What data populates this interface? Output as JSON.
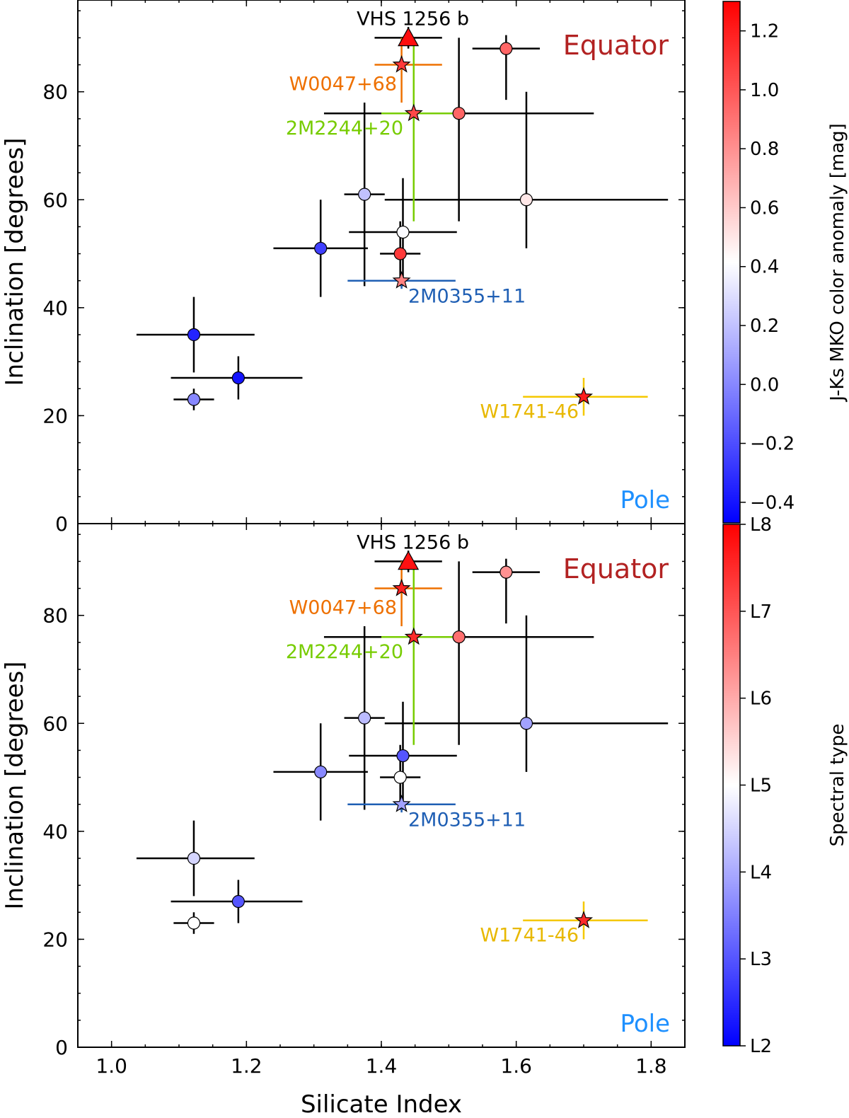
{
  "chart_data": [
    {
      "type": "scatter",
      "panel": "top",
      "xlabel": "",
      "ylabel": "Inclination [degrees]",
      "xlim": [
        0.95,
        1.85
      ],
      "ylim": [
        0,
        97
      ],
      "xticks": [
        "1.0",
        "1.2",
        "1.4",
        "1.6",
        "1.8"
      ],
      "yticks": [
        "0",
        "20",
        "40",
        "60",
        "80"
      ],
      "colorbar": {
        "label": "J-Ks MKO color anomaly [mag]",
        "range": [
          -0.47,
          1.3
        ],
        "ticks": [
          "−0.4",
          "−0.2",
          "0.0",
          "0.2",
          "0.4",
          "0.6",
          "0.8",
          "1.0",
          "1.2"
        ],
        "tick_values": [
          -0.4,
          -0.2,
          0.0,
          0.2,
          0.4,
          0.6,
          0.8,
          1.0,
          1.2
        ]
      },
      "annotations": [
        {
          "text": "Equator",
          "color": "#b22222"
        },
        {
          "text": "Pole",
          "color": "#1e90ff"
        }
      ],
      "labeled_objects": [
        {
          "name": "VHS 1256 b",
          "marker": "triangle",
          "x": 1.44,
          "y": 90,
          "xerr": 0.05,
          "yerr": 2,
          "color_value": 1.25,
          "bar_color": "#000000",
          "label_color": "#000000"
        },
        {
          "name": "W0047+68",
          "marker": "star",
          "x": 1.43,
          "y": 85,
          "xerr": [
            0.04,
            0.06
          ],
          "yerr": [
            7,
            5
          ],
          "color_value": 1.1,
          "bar_color": "#ee7000",
          "label_color": "#ee7000"
        },
        {
          "name": "2M2244+20",
          "marker": "star",
          "x": 1.448,
          "y": 76,
          "xerr": [
            0.048,
            0.06
          ],
          "yerr": [
            20,
            14
          ],
          "color_value": 1.05,
          "bar_color": "#77cc00",
          "label_color": "#77cc00"
        },
        {
          "name": "2M0355+11",
          "marker": "star",
          "x": 1.43,
          "y": 45,
          "xerr": [
            0.08,
            0.08
          ],
          "yerr": [
            1.5,
            1.5
          ],
          "color_value": 0.85,
          "bar_color": "#1f5fb4",
          "label_color": "#1f5fb4"
        },
        {
          "name": "W1741-46",
          "marker": "star",
          "x": 1.7,
          "y": 23.5,
          "xerr": [
            0.09,
            0.095
          ],
          "yerr": [
            3.5,
            3.5
          ],
          "color_value": 1.2,
          "bar_color": "#f5c800",
          "label_color": "#e8b800"
        }
      ],
      "points": [
        {
          "x": 1.585,
          "y": 88,
          "xerr": 0.05,
          "yerr": [
            9.5,
            2.5
          ],
          "color_value": 0.95
        },
        {
          "x": 1.515,
          "y": 76,
          "xerr": 0.2,
          "yerr": [
            20,
            14
          ],
          "color_value": 0.95
        },
        {
          "x": 1.375,
          "y": 61,
          "xerr": 0.03,
          "yerr": [
            17,
            17
          ],
          "color_value": 0.2
        },
        {
          "x": 1.615,
          "y": 60,
          "xerr": [
            0.21,
            0.21
          ],
          "yerr": [
            9,
            20
          ],
          "color_value": 0.5
        },
        {
          "x": 1.432,
          "y": 54,
          "xerr": [
            0.08,
            0.08
          ],
          "yerr": [
            10,
            10
          ],
          "color_value": 0.4
        },
        {
          "x": 1.31,
          "y": 51,
          "xerr": [
            0.07,
            0.07
          ],
          "yerr": [
            9,
            9
          ],
          "color_value": -0.25
        },
        {
          "x": 1.428,
          "y": 50,
          "xerr": [
            0.03,
            0.03
          ],
          "yerr": [
            6,
            6
          ],
          "color_value": 1.1
        },
        {
          "x": 1.122,
          "y": 35,
          "xerr": [
            0.085,
            0.09
          ],
          "yerr": [
            7,
            7
          ],
          "color_value": -0.35
        },
        {
          "x": 1.188,
          "y": 27,
          "xerr": [
            0.1,
            0.095
          ],
          "yerr": [
            4,
            4
          ],
          "color_value": -0.4
        },
        {
          "x": 1.122,
          "y": 23,
          "xerr": [
            0.03,
            0.03
          ],
          "yerr": [
            2,
            2
          ],
          "color_value": 0.0
        }
      ]
    },
    {
      "type": "scatter",
      "panel": "bottom",
      "xlabel": "Silicate Index",
      "ylabel": "Inclination [degrees]",
      "xlim": [
        0.95,
        1.85
      ],
      "ylim": [
        0,
        97
      ],
      "xticks": [
        "1.0",
        "1.2",
        "1.4",
        "1.6",
        "1.8"
      ],
      "yticks": [
        "0",
        "20",
        "40",
        "60",
        "80"
      ],
      "colorbar": {
        "label": "Spectral type",
        "range": [
          2,
          8
        ],
        "ticks": [
          "L2",
          "L3",
          "L4",
          "L5",
          "L6",
          "L7",
          "L8"
        ],
        "tick_values": [
          2,
          3,
          4,
          5,
          6,
          7,
          8
        ]
      },
      "annotations": [
        {
          "text": "Equator",
          "color": "#b22222"
        },
        {
          "text": "Pole",
          "color": "#1e90ff"
        }
      ],
      "labeled_objects": [
        {
          "name": "VHS 1256 b",
          "marker": "triangle",
          "x": 1.44,
          "y": 90,
          "xerr": 0.05,
          "yerr": 2,
          "color_value": 7.8,
          "bar_color": "#000000",
          "label_color": "#000000"
        },
        {
          "name": "W0047+68",
          "marker": "star",
          "x": 1.43,
          "y": 85,
          "xerr": [
            0.04,
            0.06
          ],
          "yerr": [
            7,
            5
          ],
          "color_value": 7.6,
          "bar_color": "#ee7000",
          "label_color": "#ee7000"
        },
        {
          "name": "2M2244+20",
          "marker": "star",
          "x": 1.448,
          "y": 76,
          "xerr": [
            0.048,
            0.06
          ],
          "yerr": [
            20,
            14
          ],
          "color_value": 7.5,
          "bar_color": "#77cc00",
          "label_color": "#77cc00"
        },
        {
          "name": "2M0355+11",
          "marker": "star",
          "x": 1.43,
          "y": 45,
          "xerr": [
            0.08,
            0.08
          ],
          "yerr": [
            1.5,
            1.5
          ],
          "color_value": 3.9,
          "bar_color": "#1f5fb4",
          "label_color": "#1f5fb4"
        },
        {
          "name": "W1741-46",
          "marker": "star",
          "x": 1.7,
          "y": 23.5,
          "xerr": [
            0.09,
            0.095
          ],
          "yerr": [
            3.5,
            3.5
          ],
          "color_value": 7.5,
          "bar_color": "#f5c800",
          "label_color": "#e8b800"
        }
      ],
      "points": [
        {
          "x": 1.585,
          "y": 88,
          "xerr": 0.05,
          "yerr": [
            9.5,
            2.5
          ],
          "color_value": 6.3
        },
        {
          "x": 1.515,
          "y": 76,
          "xerr": 0.2,
          "yerr": [
            20,
            14
          ],
          "color_value": 6.7
        },
        {
          "x": 1.375,
          "y": 61,
          "xerr": 0.03,
          "yerr": [
            17,
            17
          ],
          "color_value": 4.2
        },
        {
          "x": 1.615,
          "y": 60,
          "xerr": [
            0.21,
            0.21
          ],
          "yerr": [
            9,
            20
          ],
          "color_value": 3.9
        },
        {
          "x": 1.432,
          "y": 54,
          "xerr": [
            0.08,
            0.08
          ],
          "yerr": [
            10,
            10
          ],
          "color_value": 3.0
        },
        {
          "x": 1.31,
          "y": 51,
          "xerr": [
            0.07,
            0.07
          ],
          "yerr": [
            9,
            9
          ],
          "color_value": 3.6
        },
        {
          "x": 1.428,
          "y": 50,
          "xerr": [
            0.03,
            0.03
          ],
          "yerr": [
            6,
            6
          ],
          "color_value": 5.0
        },
        {
          "x": 1.122,
          "y": 35,
          "xerr": [
            0.085,
            0.09
          ],
          "yerr": [
            7,
            7
          ],
          "color_value": 4.5
        },
        {
          "x": 1.188,
          "y": 27,
          "xerr": [
            0.1,
            0.095
          ],
          "yerr": [
            4,
            4
          ],
          "color_value": 3.0
        },
        {
          "x": 1.122,
          "y": 23,
          "xerr": [
            0.03,
            0.03
          ],
          "yerr": [
            2,
            2
          ],
          "color_value": 5.0
        }
      ]
    }
  ]
}
